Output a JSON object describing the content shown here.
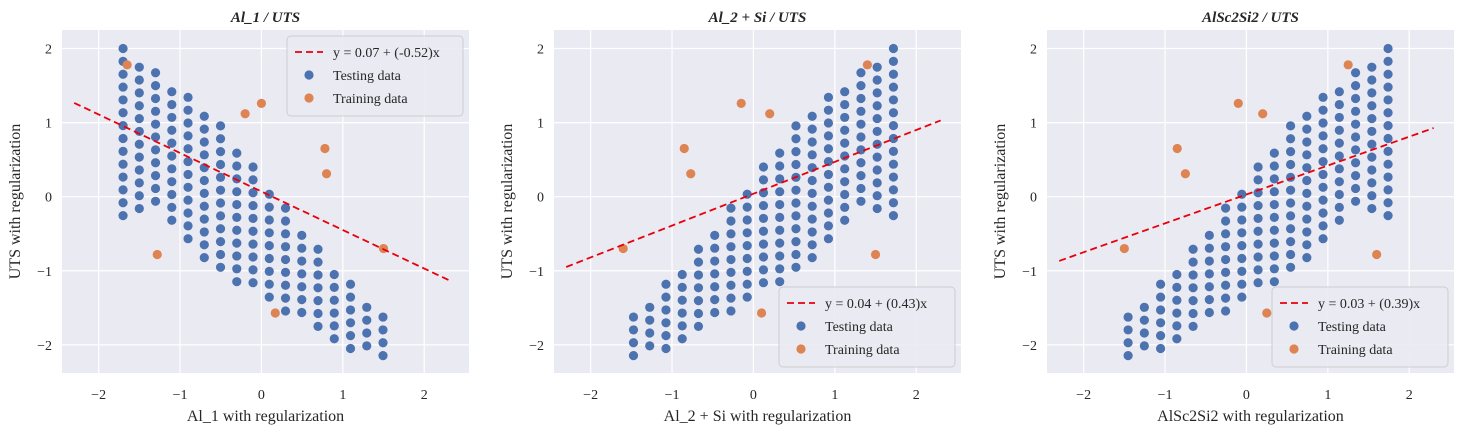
{
  "colors": {
    "background": "#eaeaf2",
    "grid": "#ffffff",
    "testing": "#4c72b0",
    "training": "#dd8452",
    "fit_line": "#e8000b"
  },
  "chart_data": [
    {
      "type": "scatter",
      "title": "Al_1 / UTS",
      "xlabel": "Al_1 with regularization",
      "ylabel": "UTS with regularization",
      "xlim": [
        -2.45,
        2.55
      ],
      "ylim": [
        -2.38,
        2.25
      ],
      "xticks": [
        -2,
        -1,
        0,
        1,
        2
      ],
      "yticks": [
        -2,
        -1,
        0,
        1,
        2
      ],
      "legend_position": "upper right",
      "slope": -0.52,
      "intercept": 0.07,
      "fit_x": [
        -2.3,
        2.3
      ],
      "series": [
        {
          "name": "y = 0.07 + (-0.52)x",
          "kind": "line"
        },
        {
          "name": "Testing data",
          "kind": "testing"
        },
        {
          "name": "Training data",
          "kind": "training",
          "points": [
            [
              -1.65,
              1.78
            ],
            [
              -1.28,
              -0.78
            ],
            [
              -0.2,
              1.12
            ],
            [
              0,
              1.26
            ],
            [
              0.17,
              -1.57
            ],
            [
              0.78,
              0.65
            ],
            [
              0.8,
              0.31
            ],
            [
              1.5,
              -0.7
            ]
          ]
        }
      ]
    },
    {
      "type": "scatter",
      "title": "Al_2 + Si / UTS",
      "xlabel": "Al_2 + Si with regularization",
      "ylabel": "UTS with regularization",
      "xlim": [
        -2.45,
        2.55
      ],
      "ylim": [
        -2.38,
        2.25
      ],
      "xticks": [
        -2,
        -1,
        0,
        1,
        2
      ],
      "yticks": [
        -2,
        -1,
        0,
        1,
        2
      ],
      "legend_position": "lower right",
      "slope": 0.43,
      "intercept": 0.04,
      "fit_x": [
        -2.3,
        2.3
      ],
      "series": [
        {
          "name": "y = 0.04 + (0.43)x",
          "kind": "line"
        },
        {
          "name": "Testing data",
          "kind": "testing"
        },
        {
          "name": "Training data",
          "kind": "training",
          "points": [
            [
              -1.6,
              -0.7
            ],
            [
              -0.85,
              0.65
            ],
            [
              -0.77,
              0.31
            ],
            [
              -0.15,
              1.26
            ],
            [
              0.1,
              -1.57
            ],
            [
              0.2,
              1.12
            ],
            [
              1.4,
              1.78
            ],
            [
              1.5,
              -0.78
            ]
          ]
        }
      ]
    },
    {
      "type": "scatter",
      "title": "AlSc2Si2 / UTS",
      "xlabel": "AlSc2Si2 with regularization",
      "ylabel": "UTS with regularization",
      "xlim": [
        -2.45,
        2.55
      ],
      "ylim": [
        -2.38,
        2.25
      ],
      "xticks": [
        -2,
        -1,
        0,
        1,
        2
      ],
      "yticks": [
        -2,
        -1,
        0,
        1,
        2
      ],
      "legend_position": "lower right",
      "slope": 0.39,
      "intercept": 0.03,
      "fit_x": [
        -2.3,
        2.3
      ],
      "series": [
        {
          "name": "y = 0.03 + (0.39)x",
          "kind": "line"
        },
        {
          "name": "Testing data",
          "kind": "testing"
        },
        {
          "name": "Training data",
          "kind": "training",
          "points": [
            [
              -1.5,
              -0.7
            ],
            [
              -0.85,
              0.65
            ],
            [
              -0.75,
              0.31
            ],
            [
              -0.1,
              1.26
            ],
            [
              0.2,
              1.12
            ],
            [
              0.25,
              -1.57
            ],
            [
              1.25,
              1.78
            ],
            [
              1.6,
              -0.78
            ]
          ]
        }
      ]
    }
  ]
}
